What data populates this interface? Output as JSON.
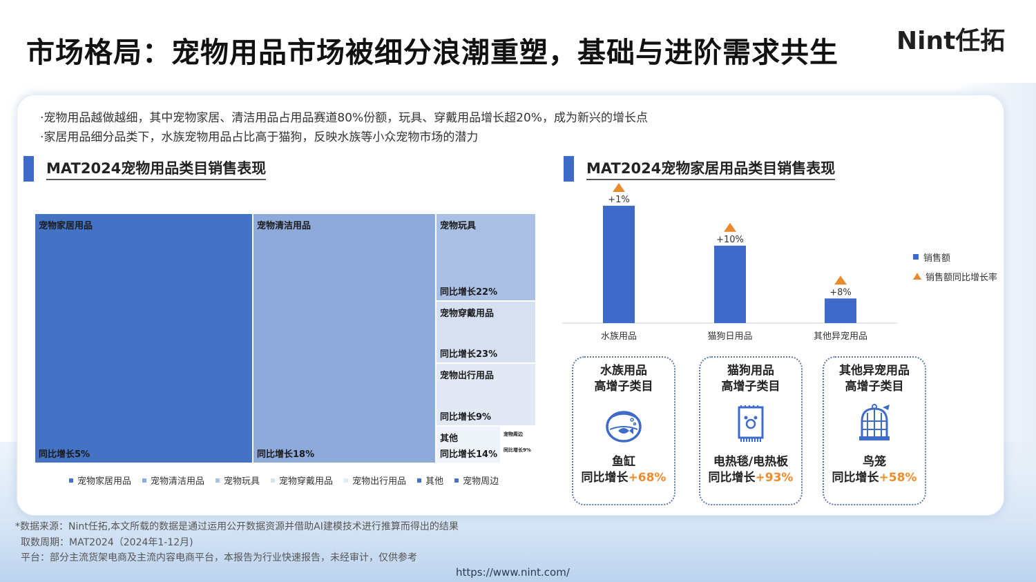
{
  "header": {
    "title": "市场格局：宠物用品市场被细分浪潮重塑，基础与进阶需求共生",
    "logo": "Nint任拓"
  },
  "bullets": [
    "·宠物用品越做越细，其中宠物家居、清洁用品占用品赛道80%份额，玩具、穿戴用品增长超20%，成为新兴的增长点",
    "·家居用品细分品类下，水族宠物用品占比高于猫狗，反映水族等小众宠物市场的潜力"
  ],
  "left_section": {
    "title": "MAT2024宠物用品类目销售表现"
  },
  "right_section": {
    "title": "MAT2024宠物家居用品类目销售表现"
  },
  "colors": {
    "accent": "#3e6bc9",
    "orange": "#f08a2a",
    "tm": [
      "#4472c4",
      "#8eaadb",
      "#a9bfe4",
      "#d6e0f1",
      "#e2e9f5",
      "#eef2f9",
      "#ffffff"
    ]
  },
  "chart_data": [
    {
      "type": "treemap",
      "title": "MAT2024宠物用品类目销售表现",
      "items": [
        {
          "name": "宠物家居用品",
          "growth": "同比增长5%"
        },
        {
          "name": "宠物清洁用品",
          "growth": "同比增长18%"
        },
        {
          "name": "宠物玩具",
          "growth": "同比增长22%"
        },
        {
          "name": "宠物穿戴用品",
          "growth": "同比增长23%"
        },
        {
          "name": "宠物出行用品",
          "growth": "同比增长9%"
        },
        {
          "name": "其他",
          "growth": "同比增长14%"
        },
        {
          "name": "宠物周边",
          "growth": "同比增长9%"
        }
      ],
      "legend": [
        "宠物家居用品",
        "宠物清洁用品",
        "宠物玩具",
        "宠物穿戴用品",
        "宠物出行用品",
        "其他",
        "宠物周边"
      ]
    },
    {
      "type": "bar",
      "title": "MAT2024宠物家居用品类目销售表现",
      "categories": [
        "水族用品",
        "猫狗日用品",
        "其他异宠用品"
      ],
      "values": [
        100,
        66,
        21
      ],
      "growth_labels": [
        "+1%",
        "+10%",
        "+8%"
      ],
      "legend": [
        "销售额",
        "销售额同比增长率"
      ]
    }
  ],
  "sub_cards": [
    {
      "head1": "水族用品",
      "head2": "高增子类目",
      "item": "鱼缸",
      "growth_label": "同比增长",
      "growth_value": "+68%",
      "icon": "fishbowl-icon"
    },
    {
      "head1": "猫狗用品",
      "head2": "高增子类目",
      "item": "电热毯/电热板",
      "growth_label": "同比增长",
      "growth_value": "+93%",
      "icon": "heating-pad-icon"
    },
    {
      "head1": "其他异宠用品",
      "head2": "高增子类目",
      "item": "鸟笼",
      "growth_label": "同比增长",
      "growth_value": "+58%",
      "icon": "birdcage-icon"
    }
  ],
  "footnotes": [
    "*数据来源：Nint任拓,本文所载的数据是通过运用公开数据资源并借助AI建模技术进行推算而得出的结果",
    "取数周期：MAT2024（2024年1-12月)",
    "平台：部分主流货架电商及主流内容电商平台，本报告为行业快速报告，未经审计，仅供参考"
  ],
  "url": "https://www.nint.com/"
}
